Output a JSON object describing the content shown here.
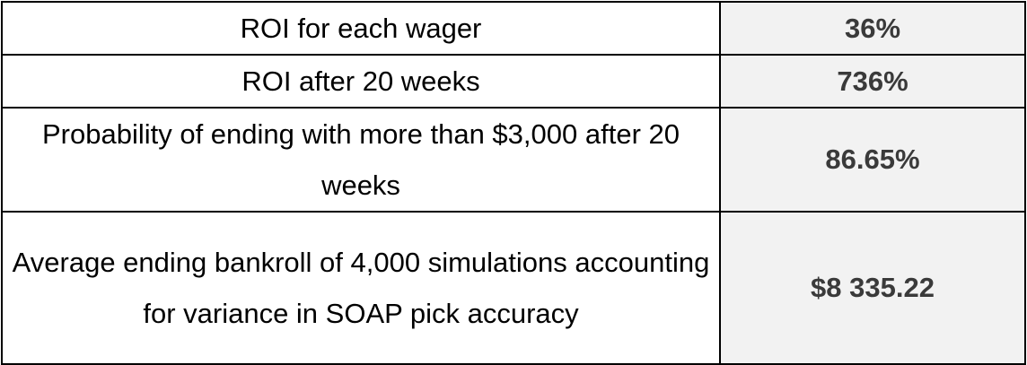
{
  "rows": [
    {
      "label": "ROI for each wager",
      "value": "36%"
    },
    {
      "label": "ROI after 20 weeks",
      "value": "736%"
    },
    {
      "label": "Probability of ending with more than $3,000 after 20 weeks",
      "value": "86.65%"
    },
    {
      "label": "Average ending bankroll of 4,000 simulations accounting for variance in SOAP pick accuracy",
      "value": "$8 335.22"
    }
  ],
  "colors": {
    "value_background": "#f2f2f2",
    "value_text": "#3a3a3a",
    "border": "#000000"
  }
}
